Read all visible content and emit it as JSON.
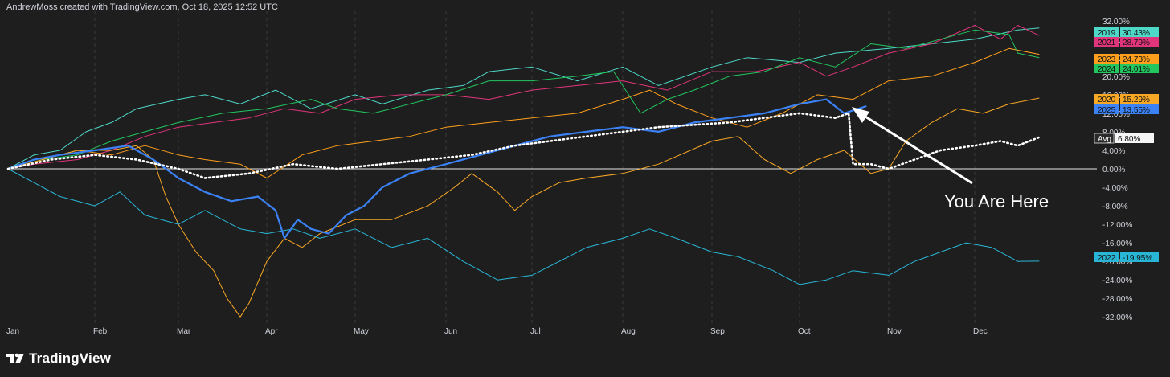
{
  "header": {
    "caption": "AndrewMoss created with TradingView.com, Oct 18, 2025 12:52 UTC"
  },
  "footer": {
    "brand": "TradingView"
  },
  "annotation": {
    "text": "You Are Here"
  },
  "colors": {
    "background": "#1e1e1e",
    "grid": "#3a3a3a",
    "zero_line": "#e6e6e6",
    "axis_text": "#d1d4dc"
  },
  "chart_data": {
    "type": "line",
    "title": "",
    "xlabel": "",
    "ylabel": "",
    "x_months": [
      "Jan",
      "Feb",
      "Mar",
      "Apr",
      "May",
      "Jun",
      "Jul",
      "Aug",
      "Sep",
      "Oct",
      "Nov",
      "Dec"
    ],
    "y_ticks": [
      "32.00%",
      "28.00%",
      "24.00%",
      "20.00%",
      "16.00%",
      "12.00%",
      "8.00%",
      "4.00%",
      "0.00%",
      "-4.00%",
      "-8.00%",
      "-12.00%",
      "-16.00%",
      "-20.00%",
      "-24.00%",
      "-28.00%",
      "-32.00%"
    ],
    "ylim": [
      -33,
      33
    ],
    "xlim": [
      0,
      12
    ],
    "series": [
      {
        "name": "2019",
        "last": "30.43%",
        "color": "#4ed8c8",
        "width": 1,
        "points": [
          [
            0,
            0
          ],
          [
            0.3,
            3
          ],
          [
            0.6,
            4
          ],
          [
            0.9,
            8
          ],
          [
            1.2,
            10
          ],
          [
            1.5,
            13
          ],
          [
            2.0,
            15
          ],
          [
            2.3,
            16
          ],
          [
            2.7,
            14
          ],
          [
            3.1,
            17
          ],
          [
            3.5,
            13
          ],
          [
            4.0,
            16
          ],
          [
            4.3,
            14
          ],
          [
            4.8,
            17
          ],
          [
            5.2,
            18
          ],
          [
            5.5,
            21
          ],
          [
            6.0,
            22
          ],
          [
            6.5,
            19
          ],
          [
            7.0,
            22
          ],
          [
            7.4,
            18
          ],
          [
            8.0,
            22
          ],
          [
            8.4,
            24
          ],
          [
            9.0,
            23
          ],
          [
            9.4,
            25
          ],
          [
            10.0,
            26
          ],
          [
            10.5,
            27
          ],
          [
            11.0,
            28
          ],
          [
            11.5,
            30
          ],
          [
            11.75,
            30.43
          ]
        ]
      },
      {
        "name": "2021",
        "last": "28.79%",
        "color": "#e0357a",
        "width": 1,
        "points": [
          [
            0,
            0
          ],
          [
            0.3,
            1
          ],
          [
            0.8,
            2
          ],
          [
            1.2,
            4
          ],
          [
            1.6,
            7
          ],
          [
            2.0,
            9
          ],
          [
            2.4,
            10
          ],
          [
            2.8,
            11
          ],
          [
            3.2,
            13
          ],
          [
            3.6,
            12
          ],
          [
            4.0,
            15
          ],
          [
            4.5,
            16
          ],
          [
            5.0,
            16
          ],
          [
            5.5,
            15
          ],
          [
            6.0,
            17
          ],
          [
            6.5,
            18
          ],
          [
            7.0,
            19
          ],
          [
            7.5,
            17
          ],
          [
            8.0,
            21
          ],
          [
            8.5,
            21
          ],
          [
            9.0,
            23
          ],
          [
            9.3,
            20
          ],
          [
            9.6,
            22
          ],
          [
            10.0,
            25
          ],
          [
            10.5,
            27
          ],
          [
            11.0,
            31
          ],
          [
            11.3,
            28
          ],
          [
            11.5,
            31
          ],
          [
            11.75,
            28.79
          ]
        ]
      },
      {
        "name": "2023",
        "last": "24.73%",
        "color": "#ff9f1c",
        "width": 1,
        "points": [
          [
            0,
            0
          ],
          [
            0.4,
            2
          ],
          [
            0.8,
            4
          ],
          [
            1.2,
            3
          ],
          [
            1.6,
            5
          ],
          [
            2.0,
            3
          ],
          [
            2.3,
            2
          ],
          [
            2.7,
            1
          ],
          [
            3.0,
            -2
          ],
          [
            3.4,
            3
          ],
          [
            3.8,
            5
          ],
          [
            4.2,
            6
          ],
          [
            4.6,
            7
          ],
          [
            5.0,
            9
          ],
          [
            5.5,
            10
          ],
          [
            6.0,
            11
          ],
          [
            6.5,
            12
          ],
          [
            7.0,
            15
          ],
          [
            7.3,
            17
          ],
          [
            7.6,
            14
          ],
          [
            8.0,
            11
          ],
          [
            8.4,
            9
          ],
          [
            8.8,
            12
          ],
          [
            9.2,
            16
          ],
          [
            9.6,
            15
          ],
          [
            10.0,
            19
          ],
          [
            10.5,
            20
          ],
          [
            11.0,
            23
          ],
          [
            11.4,
            26
          ],
          [
            11.75,
            24.73
          ]
        ]
      },
      {
        "name": "2024",
        "last": "24.01%",
        "color": "#22c55e",
        "width": 1,
        "points": [
          [
            0,
            0
          ],
          [
            0.4,
            2
          ],
          [
            0.8,
            3
          ],
          [
            1.2,
            6
          ],
          [
            1.6,
            8
          ],
          [
            2.0,
            10
          ],
          [
            2.5,
            12
          ],
          [
            3.0,
            13
          ],
          [
            3.5,
            15
          ],
          [
            3.8,
            13
          ],
          [
            4.2,
            12
          ],
          [
            4.6,
            14
          ],
          [
            5.0,
            16
          ],
          [
            5.5,
            19
          ],
          [
            6.0,
            19
          ],
          [
            6.5,
            20
          ],
          [
            6.9,
            21
          ],
          [
            7.2,
            12
          ],
          [
            7.5,
            15
          ],
          [
            7.8,
            17
          ],
          [
            8.2,
            20
          ],
          [
            8.6,
            21
          ],
          [
            9.0,
            24
          ],
          [
            9.4,
            22
          ],
          [
            9.8,
            27
          ],
          [
            10.2,
            26
          ],
          [
            10.6,
            28
          ],
          [
            11.0,
            30
          ],
          [
            11.4,
            29
          ],
          [
            11.5,
            25
          ],
          [
            11.75,
            24.01
          ]
        ]
      },
      {
        "name": "2020",
        "last": "15.29%",
        "color": "#f9a825",
        "width": 1,
        "points": [
          [
            0,
            0
          ],
          [
            0.4,
            2
          ],
          [
            0.8,
            4
          ],
          [
            1.2,
            4
          ],
          [
            1.5,
            5
          ],
          [
            1.7,
            2
          ],
          [
            1.85,
            -6
          ],
          [
            2.0,
            -12
          ],
          [
            2.2,
            -18
          ],
          [
            2.4,
            -22
          ],
          [
            2.55,
            -28
          ],
          [
            2.7,
            -32
          ],
          [
            2.8,
            -29
          ],
          [
            3.0,
            -20
          ],
          [
            3.2,
            -15
          ],
          [
            3.4,
            -17
          ],
          [
            3.6,
            -14
          ],
          [
            4.0,
            -11
          ],
          [
            4.4,
            -11
          ],
          [
            4.8,
            -8
          ],
          [
            5.1,
            -4
          ],
          [
            5.3,
            -1
          ],
          [
            5.6,
            -5
          ],
          [
            5.8,
            -9
          ],
          [
            6.0,
            -6
          ],
          [
            6.3,
            -3
          ],
          [
            6.6,
            -2
          ],
          [
            7.0,
            -1
          ],
          [
            7.4,
            1
          ],
          [
            8.0,
            6
          ],
          [
            8.3,
            7
          ],
          [
            8.6,
            2
          ],
          [
            8.9,
            -1
          ],
          [
            9.2,
            2
          ],
          [
            9.5,
            4
          ],
          [
            9.8,
            -1
          ],
          [
            10.0,
            0
          ],
          [
            10.2,
            6
          ],
          [
            10.5,
            10
          ],
          [
            10.8,
            13
          ],
          [
            11.1,
            12
          ],
          [
            11.4,
            14
          ],
          [
            11.75,
            15.29
          ]
        ]
      },
      {
        "name": "2022",
        "last": "-19.95%",
        "color": "#29b6d6",
        "width": 1,
        "points": [
          [
            0,
            0
          ],
          [
            0.3,
            -3
          ],
          [
            0.6,
            -6
          ],
          [
            1.0,
            -8
          ],
          [
            1.3,
            -5
          ],
          [
            1.6,
            -10
          ],
          [
            2.0,
            -12
          ],
          [
            2.3,
            -9
          ],
          [
            2.7,
            -13
          ],
          [
            3.0,
            -14
          ],
          [
            3.3,
            -13
          ],
          [
            3.6,
            -15
          ],
          [
            4.0,
            -13
          ],
          [
            4.4,
            -17
          ],
          [
            4.8,
            -15
          ],
          [
            5.2,
            -20
          ],
          [
            5.6,
            -24
          ],
          [
            6.0,
            -23
          ],
          [
            6.3,
            -20
          ],
          [
            6.6,
            -17
          ],
          [
            7.0,
            -15
          ],
          [
            7.3,
            -13
          ],
          [
            7.6,
            -15
          ],
          [
            8.0,
            -18
          ],
          [
            8.3,
            -19
          ],
          [
            8.7,
            -22
          ],
          [
            9.0,
            -25
          ],
          [
            9.3,
            -24
          ],
          [
            9.6,
            -22
          ],
          [
            10.0,
            -23
          ],
          [
            10.3,
            -20
          ],
          [
            10.6,
            -18
          ],
          [
            10.9,
            -16
          ],
          [
            11.2,
            -17
          ],
          [
            11.5,
            -20
          ],
          [
            11.75,
            -19.95
          ]
        ]
      },
      {
        "name": "2025",
        "last": "13.55%",
        "color": "#3b82f6",
        "width": 2.2,
        "points": [
          [
            0,
            0
          ],
          [
            0.3,
            2
          ],
          [
            0.6,
            3
          ],
          [
            1.0,
            4
          ],
          [
            1.4,
            5
          ],
          [
            1.7,
            2
          ],
          [
            2.0,
            -2
          ],
          [
            2.3,
            -5
          ],
          [
            2.6,
            -7
          ],
          [
            2.9,
            -6
          ],
          [
            3.1,
            -9
          ],
          [
            3.2,
            -15
          ],
          [
            3.35,
            -11
          ],
          [
            3.5,
            -13
          ],
          [
            3.7,
            -14
          ],
          [
            3.9,
            -10
          ],
          [
            4.1,
            -8
          ],
          [
            4.3,
            -4
          ],
          [
            4.6,
            -1
          ],
          [
            5.0,
            1
          ],
          [
            5.4,
            3
          ],
          [
            5.8,
            5
          ],
          [
            6.2,
            7
          ],
          [
            6.6,
            8
          ],
          [
            7.0,
            9
          ],
          [
            7.4,
            8
          ],
          [
            7.8,
            10
          ],
          [
            8.2,
            11
          ],
          [
            8.6,
            12
          ],
          [
            9.0,
            14
          ],
          [
            9.3,
            15
          ],
          [
            9.5,
            12
          ],
          [
            9.75,
            13.55
          ]
        ]
      },
      {
        "name": "Avg",
        "last": "6.80%",
        "color": "#ffffff",
        "width": 2.2,
        "dotted": true,
        "points": [
          [
            0,
            0
          ],
          [
            0.5,
            2
          ],
          [
            1.0,
            3
          ],
          [
            1.5,
            2
          ],
          [
            2.0,
            0
          ],
          [
            2.3,
            -2
          ],
          [
            2.8,
            -1
          ],
          [
            3.3,
            1
          ],
          [
            3.8,
            0
          ],
          [
            4.3,
            1
          ],
          [
            4.8,
            2
          ],
          [
            5.3,
            3
          ],
          [
            5.8,
            5
          ],
          [
            6.2,
            6
          ],
          [
            6.6,
            7
          ],
          [
            7.0,
            8
          ],
          [
            7.4,
            9
          ],
          [
            7.8,
            9.5
          ],
          [
            8.2,
            10
          ],
          [
            8.6,
            11
          ],
          [
            9.0,
            12
          ],
          [
            9.4,
            11
          ],
          [
            9.55,
            12
          ],
          [
            9.6,
            1
          ],
          [
            9.8,
            1
          ],
          [
            10.0,
            0
          ],
          [
            10.3,
            2
          ],
          [
            10.6,
            4
          ],
          [
            11.0,
            5
          ],
          [
            11.3,
            6
          ],
          [
            11.5,
            5
          ],
          [
            11.75,
            6.8
          ]
        ]
      }
    ],
    "legend_order": [
      "2019",
      "2021",
      "2023",
      "2024",
      "2020",
      "2025",
      "Avg",
      "2022"
    ]
  }
}
